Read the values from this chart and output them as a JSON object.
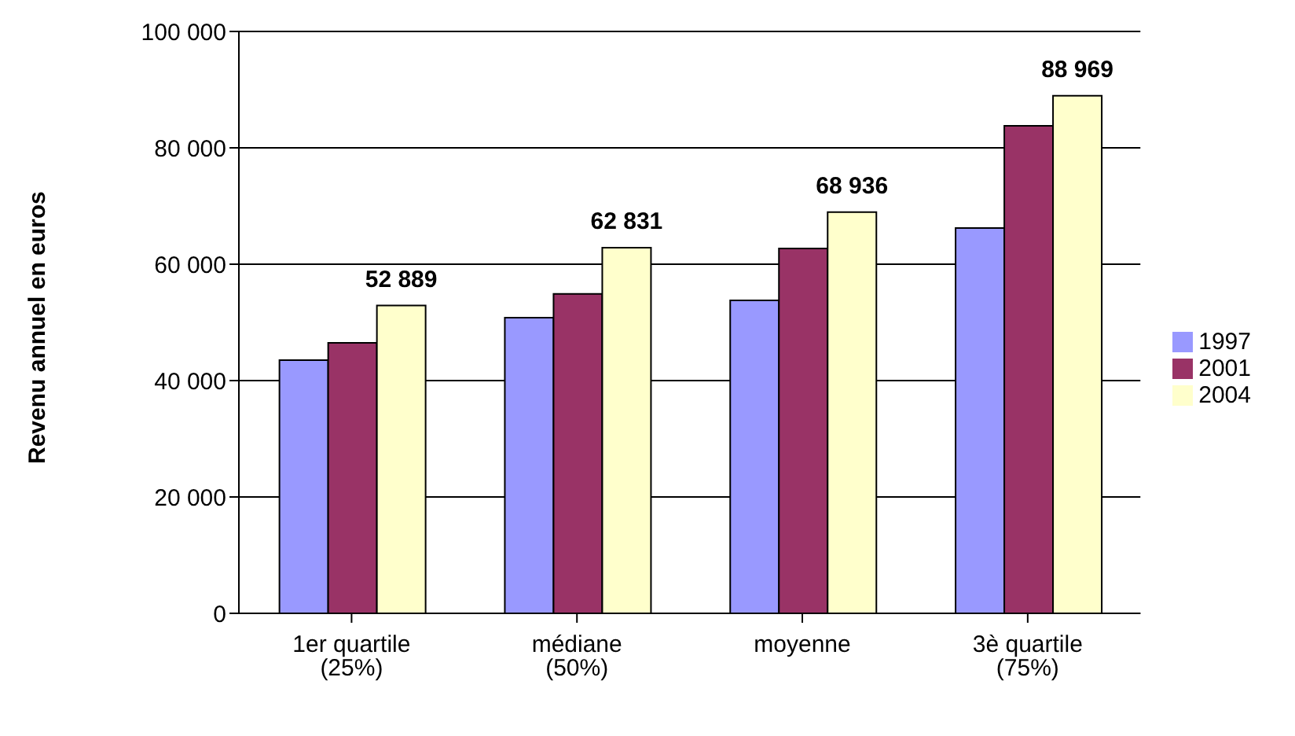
{
  "chart_data": {
    "type": "bar",
    "ylabel": "Revenu annuel en euros",
    "categories": [
      "1er quartile (25%)",
      "médiane (50%)",
      "moyenne",
      "3è quartile (75%)"
    ],
    "series": [
      {
        "name": "1997",
        "color": "#9999ff",
        "values": [
          43500,
          50800,
          53800,
          66200
        ]
      },
      {
        "name": "2001",
        "color": "#993366",
        "values": [
          46500,
          54900,
          62700,
          83800
        ]
      },
      {
        "name": "2004",
        "color": "#ffffcc",
        "values": [
          52889,
          62831,
          68936,
          88969
        ],
        "value_labels": [
          "52 889",
          "62 831",
          "68 936",
          "88 969"
        ]
      }
    ],
    "ylim": [
      0,
      100000
    ],
    "yticks": [
      {
        "value": 0,
        "label": "0"
      },
      {
        "value": 20000,
        "label": "20 000"
      },
      {
        "value": 40000,
        "label": "40 000"
      },
      {
        "value": 60000,
        "label": "60 000"
      },
      {
        "value": 80000,
        "label": "80 000"
      },
      {
        "value": 100000,
        "label": "100 000"
      }
    ],
    "grid": "y",
    "legend": "right"
  }
}
